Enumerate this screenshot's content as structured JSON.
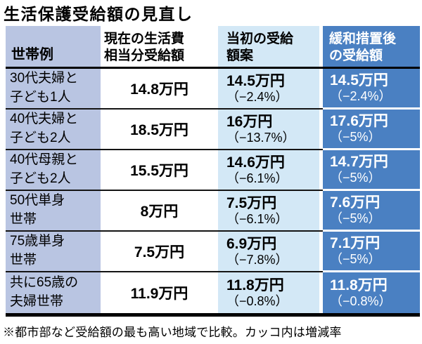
{
  "title": "生活保護受給額の見直し",
  "footnote": "※都市部など受給額の最も高い地域で比較。カッコ内は増減率",
  "colors": {
    "household_column_bg": "#b9c5e2",
    "initial_column_bg": "#d3e8f6",
    "after_relief_column_bg": "#4a80c2",
    "rule_line": "#000000"
  },
  "table": {
    "headers": {
      "household": "世帯例",
      "current": "現在の生活費\n相当分受給額",
      "initial": "当初の受給\n額案",
      "after": "緩和措置後\nの受給額"
    },
    "rows": [
      {
        "household": "30代夫婦と\n子ども1人",
        "current": "14.8万円",
        "initial_amount": "14.5万円",
        "initial_change": "（−2.4%）",
        "after_amount": "14.5万円",
        "after_change": "（−2.4%）"
      },
      {
        "household": "40代夫婦と\n子ども2人",
        "current": "18.5万円",
        "initial_amount": "16万円",
        "initial_change": "（−13.7%）",
        "after_amount": "17.6万円",
        "after_change": "（−5%）"
      },
      {
        "household": "40代母親と\n子ども2人",
        "current": "15.5万円",
        "initial_amount": "14.6万円",
        "initial_change": "（−6.1%）",
        "after_amount": "14.7万円",
        "after_change": "（−5%）"
      },
      {
        "household": "50代単身\n世帯",
        "current": "8万円",
        "initial_amount": "7.5万円",
        "initial_change": "（−6.1%）",
        "after_amount": "7.6万円",
        "after_change": "（−5%）"
      },
      {
        "household": "75歳単身\n世帯",
        "current": "7.5万円",
        "initial_amount": "6.9万円",
        "initial_change": "（−7.8%）",
        "after_amount": "7.1万円",
        "after_change": "（−5%）"
      },
      {
        "household": "共に65歳の\n夫婦世帯",
        "current": "11.9万円",
        "initial_amount": "11.8万円",
        "initial_change": "（−0.8%）",
        "after_amount": "11.8万円",
        "after_change": "（−0.8%）"
      }
    ]
  },
  "chart_data": {
    "type": "table",
    "title": "生活保護受給額の見直し",
    "columns": [
      "世帯例",
      "現在の生活費相当分受給額",
      "当初の受給額案",
      "緩和措置後の受給額"
    ],
    "rows": [
      [
        "30代夫婦と子ども1人",
        "14.8万円",
        "14.5万円（−2.4%）",
        "14.5万円（−2.4%）"
      ],
      [
        "40代夫婦と子ども2人",
        "18.5万円",
        "16万円（−13.7%）",
        "17.6万円（−5%）"
      ],
      [
        "40代母親と子ども2人",
        "15.5万円",
        "14.6万円（−6.1%）",
        "14.7万円（−5%）"
      ],
      [
        "50代単身世帯",
        "8万円",
        "7.5万円（−6.1%）",
        "7.6万円（−5%）"
      ],
      [
        "75歳単身世帯",
        "7.5万円",
        "6.9万円（−7.8%）",
        "7.1万円（−5%）"
      ],
      [
        "共に65歳の夫婦世帯",
        "11.9万円",
        "11.8万円（−0.8%）",
        "11.8万円（−0.8%）"
      ]
    ],
    "note": "※都市部など受給額の最も高い地域で比較。カッコ内は増減率"
  }
}
